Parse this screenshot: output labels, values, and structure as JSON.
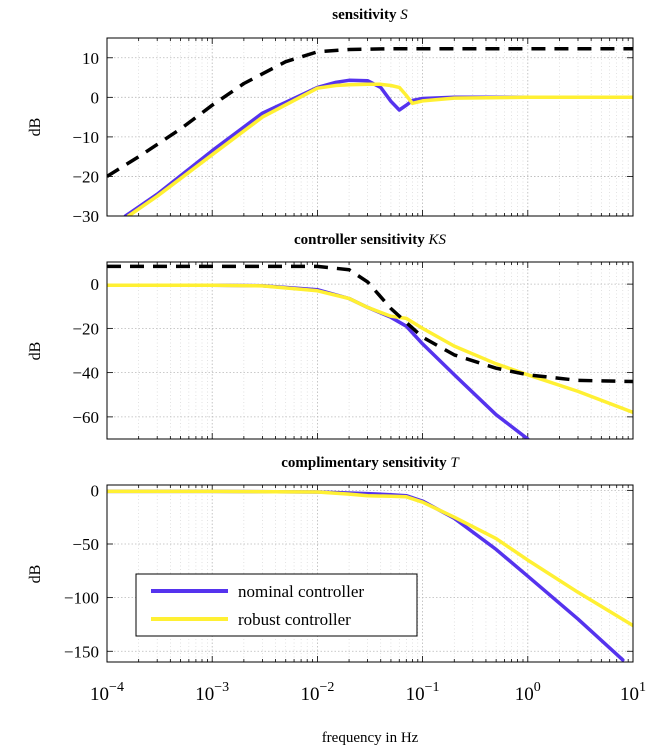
{
  "chart_data": [
    {
      "type": "line",
      "title": "sensitivity",
      "title_symbol": "S",
      "ylabel": "dB",
      "ylim": [
        -30,
        15
      ],
      "yticks": [
        10,
        0,
        -10,
        -20,
        -30
      ],
      "ytick_labels": [
        "10",
        "0",
        "−10",
        "−20",
        "−30"
      ],
      "xscale": "log",
      "xlim": [
        0.0001,
        10
      ],
      "grid": true,
      "series": [
        {
          "key": "bound",
          "color": "#000000",
          "dashed": true,
          "x": [
            0.0001,
            0.0002,
            0.0005,
            0.001,
            0.002,
            0.005,
            0.01,
            0.02,
            0.05,
            0.1,
            1,
            10
          ],
          "y": [
            -20,
            -15,
            -8,
            -2,
            3.5,
            9,
            11.5,
            12.1,
            12.3,
            12.3,
            12.3,
            12.3
          ]
        },
        {
          "key": "nominal",
          "color": "#5533ee",
          "x": [
            0.00015,
            0.0003,
            0.001,
            0.003,
            0.01,
            0.015,
            0.02,
            0.03,
            0.04,
            0.05,
            0.06,
            0.07,
            0.08,
            0.1,
            0.2,
            1,
            10
          ],
          "y": [
            -30,
            -24.5,
            -13.5,
            -4,
            2.5,
            3.8,
            4.3,
            4.2,
            2.5,
            -1,
            -3.2,
            -2,
            -0.8,
            -0.3,
            0,
            0,
            0
          ]
        },
        {
          "key": "robust",
          "color": "#fff033",
          "x": [
            0.00016,
            0.0003,
            0.001,
            0.003,
            0.01,
            0.015,
            0.02,
            0.03,
            0.04,
            0.05,
            0.06,
            0.07,
            0.08,
            0.1,
            0.2,
            1,
            10
          ],
          "y": [
            -30,
            -25,
            -14.5,
            -5,
            2.3,
            3.0,
            3.2,
            3.3,
            3.3,
            3.0,
            2.5,
            0.5,
            -1.5,
            -0.9,
            -0.2,
            0,
            0
          ]
        }
      ]
    },
    {
      "type": "line",
      "title": "controller sensitivity",
      "title_symbol": "KS",
      "ylabel": "dB",
      "ylim": [
        -70,
        10
      ],
      "yticks": [
        0,
        -20,
        -40,
        -60
      ],
      "ytick_labels": [
        "0",
        "−20",
        "−40",
        "−60"
      ],
      "xscale": "log",
      "xlim": [
        0.0001,
        10
      ],
      "grid": true,
      "series": [
        {
          "key": "bound",
          "color": "#000000",
          "dashed": true,
          "x": [
            0.0001,
            0.001,
            0.01,
            0.02,
            0.03,
            0.05,
            0.1,
            0.2,
            0.5,
            1,
            3,
            10
          ],
          "y": [
            8,
            8,
            8,
            6.5,
            1,
            -11,
            -24,
            -32,
            -38,
            -41,
            -43.5,
            -44
          ]
        },
        {
          "key": "nominal",
          "color": "#5533ee",
          "x": [
            0.0001,
            0.001,
            0.003,
            0.01,
            0.02,
            0.03,
            0.05,
            0.07,
            0.1,
            0.2,
            0.5,
            1
          ],
          "y": [
            -0.5,
            -0.5,
            -0.7,
            -2.5,
            -6.5,
            -10.5,
            -15,
            -19,
            -27,
            -41,
            -59,
            -70
          ]
        },
        {
          "key": "robust",
          "color": "#fff033",
          "x": [
            0.0001,
            0.001,
            0.003,
            0.01,
            0.02,
            0.03,
            0.05,
            0.07,
            0.1,
            0.2,
            0.5,
            1,
            3,
            10
          ],
          "y": [
            -0.5,
            -0.5,
            -0.8,
            -3,
            -6.5,
            -10.5,
            -14.5,
            -15.5,
            -20,
            -28,
            -36,
            -41,
            -48.5,
            -58
          ]
        }
      ]
    },
    {
      "type": "line",
      "title": "complimentary sensitivity",
      "title_symbol": "T",
      "ylabel": "dB",
      "xlabel": "frequency in Hz",
      "ylim": [
        -160,
        5
      ],
      "yticks": [
        0,
        -50,
        -100,
        -150
      ],
      "ytick_labels": [
        "0",
        "−50",
        "−100",
        "−150"
      ],
      "xscale": "log",
      "xlim": [
        0.0001,
        10
      ],
      "xtick_exponents": [
        "−4",
        "−3",
        "−2",
        "−1",
        "0",
        "1"
      ],
      "grid": true,
      "legend": {
        "placement": "bottom-left",
        "entries": [
          "nominal controller",
          "robust controller"
        ]
      },
      "series": [
        {
          "key": "nominal",
          "name": "nominal controller",
          "color": "#5533ee",
          "x": [
            0.0001,
            0.001,
            0.01,
            0.02,
            0.03,
            0.05,
            0.07,
            0.1,
            0.2,
            0.5,
            1,
            3,
            8
          ],
          "y": [
            -1,
            -1,
            -1.5,
            -2.5,
            -3,
            -4,
            -5,
            -10,
            -26,
            -55,
            -80,
            -120,
            -158
          ]
        },
        {
          "key": "robust",
          "name": "robust controller",
          "color": "#fff033",
          "x": [
            0.0001,
            0.001,
            0.01,
            0.02,
            0.03,
            0.05,
            0.07,
            0.1,
            0.2,
            0.5,
            1,
            3,
            10
          ],
          "y": [
            -1,
            -1,
            -1.5,
            -3.5,
            -5,
            -5.5,
            -6,
            -11,
            -25,
            -45,
            -65,
            -95,
            -126
          ]
        }
      ]
    }
  ]
}
